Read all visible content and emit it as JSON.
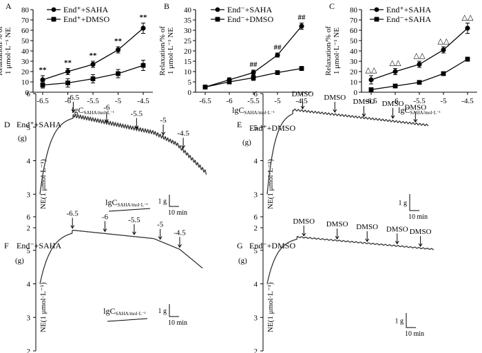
{
  "figure": {
    "panels": {
      "A": "A",
      "B": "B",
      "C": "C",
      "D": "D",
      "E": "E",
      "F": "F",
      "G": "G"
    },
    "trace_titles": {
      "D": "End⁺+SAHA",
      "E": "End⁺+DMSO",
      "F": "End⁻+SAHA",
      "G": "End⁻+DMSO"
    },
    "ne_label": "NE(1 μmol·L⁻¹)",
    "g_label": "(g)",
    "scale_bar_g": "1 g",
    "scale_bar_min": "10 min",
    "lgc_label": "lgC",
    "lgc_sub": "SAHA/mol·L⁻¹"
  },
  "chart_data": [
    {
      "id": "A",
      "type": "line",
      "ylabel_line1": "Relaxation/% of",
      "ylabel_line2": "1 μmol·L⁻¹ NE",
      "xlabel": "lgC",
      "xlabel_sub": "SAHA/mol·L⁻¹",
      "x": [
        -6.5,
        -6,
        -5.5,
        -5,
        -4.5
      ],
      "xticklabels": [
        "-6.5",
        "-6",
        "-5.5",
        "-5",
        "-4.5"
      ],
      "ylim": [
        0,
        80
      ],
      "yticks": [
        0,
        10,
        20,
        30,
        40,
        50,
        60,
        70,
        80
      ],
      "series": [
        {
          "name": "End⁺+SAHA",
          "marker": "circle",
          "values": [
            12,
            20,
            27,
            41,
            62
          ],
          "errors": [
            4,
            3,
            3,
            3,
            5
          ]
        },
        {
          "name": "End⁺+DMSO",
          "marker": "square",
          "values": [
            7,
            9,
            13,
            18,
            26
          ],
          "errors": [
            3,
            4,
            4,
            4,
            5
          ]
        }
      ],
      "annotations": [
        "**",
        "**",
        "**",
        "**",
        "**"
      ]
    },
    {
      "id": "B",
      "type": "line",
      "ylabel_line1": "Relaxation/% of",
      "ylabel_line2": "1 μmol·L⁻¹ NE",
      "xlabel": "lgC",
      "xlabel_sub": "SAHA/mol·L⁻¹",
      "x": [
        -6.5,
        -6,
        -5.5,
        -5,
        -4.5
      ],
      "xticklabels": [
        "-6.5",
        "-6",
        "-5.5",
        "-5",
        "-4.5"
      ],
      "ylim": [
        0,
        40
      ],
      "yticks": [
        0,
        5,
        10,
        15,
        20,
        25,
        30,
        35,
        40
      ],
      "series": [
        {
          "name": "End⁻+SAHA",
          "marker": "circle",
          "values": [
            2.5,
            6,
            9.5,
            18,
            32
          ],
          "errors": [
            1,
            1,
            1.2,
            1,
            1.5
          ]
        },
        {
          "name": "End⁻+DMSO",
          "marker": "square",
          "values": [
            2.5,
            5,
            7,
            9.5,
            11.5
          ],
          "errors": [
            1,
            1,
            1.3,
            0.8,
            1
          ]
        }
      ],
      "annotations": [
        "",
        "",
        "##",
        "##",
        "##"
      ]
    },
    {
      "id": "C",
      "type": "line",
      "ylabel_line1": "Relaxation/% of",
      "ylabel_line2": "1 μmol·L⁻¹ NE",
      "xlabel": "lgC",
      "xlabel_sub": "SAHA/mol·L⁻¹",
      "x": [
        -6.5,
        -6,
        -5.5,
        -5,
        -4.5
      ],
      "xticklabels": [
        "-6.5",
        "-6",
        "-5.5",
        "-5",
        "-4.5"
      ],
      "ylim": [
        0,
        80
      ],
      "yticks": [
        0,
        10,
        20,
        30,
        40,
        50,
        60,
        70,
        80
      ],
      "series": [
        {
          "name": "End⁺+SAHA",
          "marker": "circle",
          "values": [
            12,
            20,
            27,
            41,
            62
          ],
          "errors": [
            4,
            3,
            3,
            3,
            5
          ]
        },
        {
          "name": "End⁻+SAHA",
          "marker": "square",
          "values": [
            2.5,
            6,
            9.5,
            18,
            32
          ],
          "errors": [
            1,
            1,
            1,
            1,
            2
          ]
        }
      ],
      "annotations": [
        "△△",
        "△△",
        "△△",
        "△△",
        "△△"
      ]
    }
  ],
  "traces": [
    {
      "id": "D",
      "yticks": [
        "2",
        "3",
        "4",
        "5",
        "6"
      ],
      "markers": [
        "-6.5",
        "-6",
        "-5.5",
        "-5",
        "-4.5"
      ],
      "shows_lgc_bar": true
    },
    {
      "id": "E",
      "yticks": [
        "2",
        "3",
        "4",
        "5",
        "6"
      ],
      "markers": [
        "DMSO",
        "DMSO",
        "DMSO",
        "DMSO",
        "DMSO"
      ],
      "shows_lgc_bar": false
    },
    {
      "id": "F",
      "yticks": [
        "2",
        "3",
        "4",
        "5",
        "6"
      ],
      "markers": [
        "-6.5",
        "-6",
        "-5.5",
        "-5",
        "-4.5"
      ],
      "shows_lgc_bar": true
    },
    {
      "id": "G",
      "yticks": [
        "2",
        "3",
        "4",
        "5",
        "6"
      ],
      "markers": [
        "DMSO",
        "DMSO",
        "DMSO",
        "DMSO",
        "DMSO"
      ],
      "shows_lgc_bar": false
    }
  ]
}
